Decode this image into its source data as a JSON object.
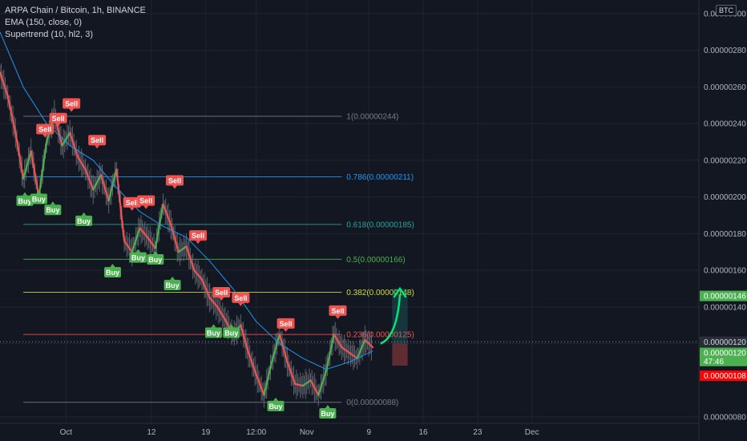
{
  "header": {
    "title": "ARPA Chain / Bitcoin, 1h, BINANCE",
    "indicators": [
      "EMA (150, close, 0)",
      "Supertrend (10, hl2, 3)"
    ],
    "currency_badge": "BTC"
  },
  "colors": {
    "background": "#131722",
    "grid": "#1f2430",
    "axis_text": "#b2b5be",
    "up": "#4caf50",
    "down": "#ef5350",
    "ema": "#2196f3",
    "arrow": "#00e676"
  },
  "chart_data": {
    "type": "line",
    "title": "ARPA Chain / Bitcoin, 1h, BINANCE",
    "ylim": [
      7.8e-07,
      3e-06
    ],
    "y_scale": "linear",
    "grid": true,
    "legend": "top-left",
    "y_ticks": [
      "0.00000300",
      "0.00000280",
      "0.00000260",
      "0.00000240",
      "0.00000220",
      "0.00000200",
      "0.00000180",
      "0.00000160",
      "0.00000140",
      "0.00000120",
      "0.00000080"
    ],
    "y_tick_values": [
      300,
      280,
      260,
      240,
      220,
      200,
      180,
      160,
      140,
      120,
      80
    ],
    "x_ticks": [
      {
        "label": "Oct",
        "x": 5.5
      },
      {
        "label": "12",
        "x": 16.5
      },
      {
        "label": "19",
        "x": 23.5
      },
      {
        "label": "12:00",
        "x": 30
      },
      {
        "label": "Nov",
        "x": 36.5
      },
      {
        "label": "9",
        "x": 44.5
      },
      {
        "label": "16",
        "x": 51.5
      },
      {
        "label": "23",
        "x": 58.5
      },
      {
        "label": "Dec",
        "x": 65.5
      }
    ],
    "xlim": [
      -3,
      87
    ],
    "series": [
      {
        "name": "ARPA/BTC",
        "x": [
          -3,
          -2,
          -1,
          0,
          1,
          2,
          3,
          4,
          5,
          6,
          7,
          8,
          9,
          10,
          11,
          12,
          13,
          14,
          15,
          16,
          17,
          18,
          19,
          20,
          21,
          22,
          23,
          24,
          25,
          26,
          27,
          28,
          29,
          30,
          31,
          32,
          33,
          34,
          35,
          36,
          37,
          38,
          39,
          40,
          41,
          42,
          43,
          44,
          45
        ],
        "values": [
          268,
          255,
          235,
          210,
          225,
          200,
          230,
          245,
          228,
          235,
          222,
          215,
          204,
          212,
          198,
          215,
          176,
          170,
          183,
          178,
          172,
          196,
          185,
          170,
          173,
          160,
          155,
          145,
          140,
          133,
          125,
          130,
          115,
          103,
          92,
          110,
          125,
          110,
          98,
          97,
          100,
          92,
          105,
          125,
          118,
          115,
          112,
          122,
          118
        ]
      },
      {
        "name": "EMA (150, close, 0)",
        "x": [
          -3,
          0,
          3,
          6,
          9,
          12,
          15,
          18,
          21,
          24,
          27,
          30,
          33,
          36,
          39,
          42,
          45
        ],
        "values": [
          290,
          260,
          240,
          228,
          220,
          205,
          192,
          184,
          178,
          165,
          150,
          132,
          120,
          112,
          106,
          110,
          116
        ]
      }
    ],
    "fibonacci": [
      {
        "label": "1(0.00000244)",
        "value": 244,
        "color": "#787b86"
      },
      {
        "label": "0.786(0.00000211)",
        "value": 211,
        "color": "#2196f3"
      },
      {
        "label": "0.618(0.00000185)",
        "value": 185,
        "color": "#26a69a"
      },
      {
        "label": "0.5(0.00000166)",
        "value": 166,
        "color": "#4caf50"
      },
      {
        "label": "0.382(0.00000148)",
        "value": 148,
        "color": "#cddc39"
      },
      {
        "label": "0.236(0.00000125)",
        "value": 125,
        "color": "#ef5350"
      },
      {
        "label": "0(0.00000088)",
        "value": 88,
        "color": "#787b86"
      }
    ],
    "fib_x_range": [
      0,
      41
    ],
    "signals": [
      {
        "type": "Sell",
        "x": 2.8,
        "value": 232
      },
      {
        "type": "Sell",
        "x": 4.5,
        "value": 238
      },
      {
        "type": "Sell",
        "x": 6.2,
        "value": 246
      },
      {
        "type": "Sell",
        "x": 9.5,
        "value": 226
      },
      {
        "type": "Sell",
        "x": 14.0,
        "value": 192
      },
      {
        "type": "Sell",
        "x": 15.8,
        "value": 193
      },
      {
        "type": "Sell",
        "x": 19.5,
        "value": 204
      },
      {
        "type": "Sell",
        "x": 22.5,
        "value": 174
      },
      {
        "type": "Sell",
        "x": 25.5,
        "value": 143
      },
      {
        "type": "Sell",
        "x": 28.0,
        "value": 140
      },
      {
        "type": "Sell",
        "x": 33.8,
        "value": 126
      },
      {
        "type": "Sell",
        "x": 40.5,
        "value": 133
      },
      {
        "type": "Buy",
        "x": 0.2,
        "value": 203
      },
      {
        "type": "Buy",
        "x": 2.0,
        "value": 204
      },
      {
        "type": "Buy",
        "x": 3.8,
        "value": 198
      },
      {
        "type": "Buy",
        "x": 7.8,
        "value": 192
      },
      {
        "type": "Buy",
        "x": 11.5,
        "value": 164
      },
      {
        "type": "Buy",
        "x": 14.8,
        "value": 172
      },
      {
        "type": "Buy",
        "x": 17.0,
        "value": 171
      },
      {
        "type": "Buy",
        "x": 19.2,
        "value": 157
      },
      {
        "type": "Buy",
        "x": 24.5,
        "value": 131
      },
      {
        "type": "Buy",
        "x": 26.8,
        "value": 131
      },
      {
        "type": "Buy",
        "x": 32.5,
        "value": 91
      },
      {
        "type": "Buy",
        "x": 39.2,
        "value": 87
      }
    ],
    "projection": {
      "x_start": 46,
      "value_start": 120,
      "x_end": 48.5,
      "value_end": 150
    },
    "position_box": {
      "x_start": 47.5,
      "x_end": 49.5,
      "target": 150,
      "entry": 120,
      "stop": 108
    },
    "price_tags": [
      {
        "label": "0.00000146",
        "value": 146,
        "bg": "#4caf50",
        "fg": "#ffffff"
      },
      {
        "label": "0.00000120",
        "value": 121,
        "bg": "#2a2e39",
        "fg": "#d1d4dc"
      },
      {
        "label": "0.00000120",
        "value": 115,
        "bg": "#4caf50",
        "fg": "#ffffff"
      },
      {
        "label": "47:46",
        "value": 110.5,
        "bg": "#4caf50",
        "fg": "#ffffff"
      },
      {
        "label": "0.00000108",
        "value": 102.5,
        "bg": "#ff0000",
        "fg": "#ffffff"
      }
    ],
    "crosshair_value": 121
  }
}
